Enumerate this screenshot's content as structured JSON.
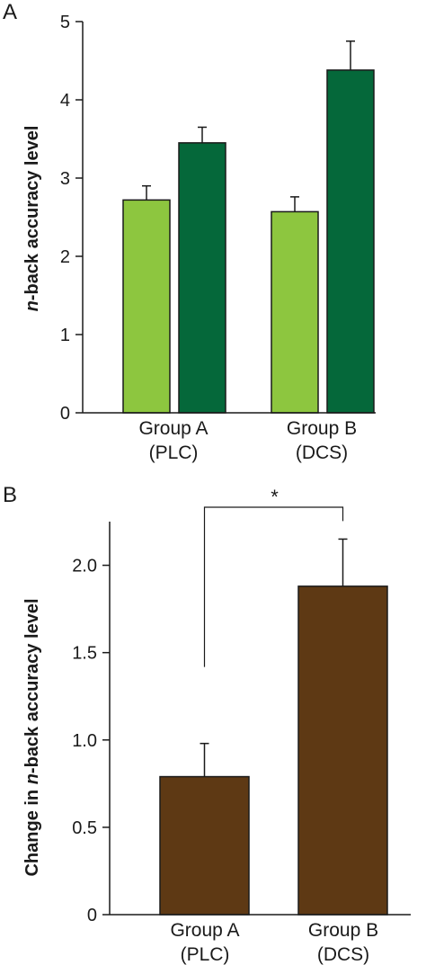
{
  "chart_data": [
    {
      "type": "bar",
      "panel": "A",
      "ylabel_italic": "n",
      "ylabel_rest": "-back accuracy level",
      "ylim": [
        0,
        5
      ],
      "yticks": [
        "0",
        "1",
        "2",
        "3",
        "4",
        "5"
      ],
      "categories": [
        {
          "line1": "Group A",
          "line2": "(PLC)"
        },
        {
          "line1": "Group B",
          "line2": "(DCS)"
        }
      ],
      "series": [
        {
          "color": "#8dc63f",
          "values": [
            2.72,
            2.57
          ],
          "errors": [
            0.18,
            0.19
          ]
        },
        {
          "color": "#05683a",
          "values": [
            3.45,
            4.38
          ],
          "errors": [
            0.2,
            0.37
          ]
        }
      ],
      "grid": false
    },
    {
      "type": "bar",
      "panel": "B",
      "ylabel_pre": "Change in ",
      "ylabel_italic": "n",
      "ylabel_rest": "-back accuracy level",
      "ylim": [
        0,
        2.25
      ],
      "yticks": [
        "0",
        "0.5",
        "1.0",
        "1.5",
        "2.0"
      ],
      "categories": [
        {
          "line1": "Group A",
          "line2": "(PLC)"
        },
        {
          "line1": "Group B",
          "line2": "(DCS)"
        }
      ],
      "series": [
        {
          "color": "#5e3914",
          "values": [
            0.79,
            1.88
          ],
          "errors": [
            0.19,
            0.27
          ]
        }
      ],
      "significance": "*",
      "grid": false
    }
  ]
}
